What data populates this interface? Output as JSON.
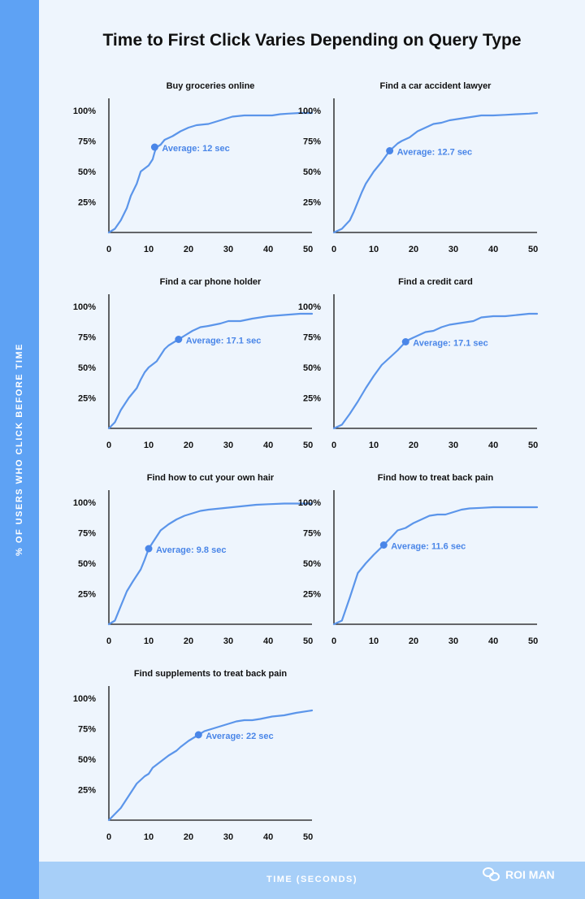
{
  "title": "Time to First Click Varies Depending on Query Type",
  "y_axis_title": "% OF USERS WHO CLICK BEFORE TIME",
  "x_axis_title": "TIME (SECONDS)",
  "watermark": {
    "text": "ROI MAN",
    "icon": "wechat-icon"
  },
  "colors": {
    "line": "#5b95ea",
    "label": "#4a86e8",
    "axis": "#111111",
    "left_band": "#5ea2f4",
    "bottom_band": "#a7cff8",
    "background": "#eef5fd"
  },
  "chart_data": [
    {
      "type": "line",
      "title": "Buy groceries online",
      "average_label": "Average: 12 sec",
      "average": {
        "x": 11.5,
        "y": 70
      },
      "x_ticks": [
        0,
        10,
        20,
        30,
        40,
        50
      ],
      "y_ticks": [
        25,
        50,
        75,
        100
      ],
      "y_tick_labels": [
        "25%",
        "50%",
        "75%",
        "100%"
      ],
      "xlim": [
        0,
        51
      ],
      "ylim": [
        0,
        100
      ],
      "x": [
        0,
        1.5,
        3,
        4.5,
        5.5,
        7,
        8,
        10,
        11,
        11.5,
        12,
        13,
        14,
        16,
        18,
        20,
        22,
        25,
        28,
        31,
        34,
        37,
        41,
        43,
        45,
        48,
        51
      ],
      "y": [
        0,
        3,
        10,
        20,
        30,
        40,
        50,
        55,
        60,
        66,
        70,
        72,
        76,
        79,
        83,
        86,
        88,
        89,
        92,
        95,
        96,
        96,
        96,
        97,
        97.5,
        98,
        98
      ]
    },
    {
      "type": "line",
      "title": "Find a car accident lawyer",
      "average_label": "Average: 12.7 sec",
      "average": {
        "x": 14,
        "y": 67
      },
      "x_ticks": [
        0,
        10,
        20,
        30,
        40,
        50
      ],
      "y_ticks": [
        25,
        50,
        75,
        100
      ],
      "y_tick_labels": [
        "25%",
        "50%",
        "75%",
        "100%"
      ],
      "xlim": [
        0,
        51
      ],
      "ylim": [
        0,
        100
      ],
      "x": [
        0,
        2,
        4,
        5,
        6,
        7,
        8,
        10,
        12,
        14,
        15,
        16,
        17,
        19,
        21,
        23,
        25,
        27,
        29,
        31,
        33,
        35,
        37,
        40,
        43,
        46,
        49,
        51
      ],
      "y": [
        0,
        3,
        10,
        17,
        25,
        33,
        40,
        50,
        58,
        67,
        70,
        73,
        75,
        78,
        83,
        86,
        89,
        90,
        92,
        93,
        94,
        95,
        96,
        96,
        96.5,
        97,
        97.5,
        98
      ]
    },
    {
      "type": "line",
      "title": "Find a car phone holder",
      "average_label": "Average: 17.1 sec",
      "average": {
        "x": 17.5,
        "y": 73
      },
      "x_ticks": [
        0,
        10,
        20,
        30,
        40,
        50
      ],
      "y_ticks": [
        25,
        50,
        75,
        100
      ],
      "y_tick_labels": [
        "25%",
        "50%",
        "75%",
        "100%"
      ],
      "xlim": [
        0,
        51
      ],
      "ylim": [
        0,
        100
      ],
      "x": [
        0,
        1.5,
        3,
        5,
        7,
        8,
        9,
        10,
        12,
        13,
        14,
        15,
        16,
        17.5,
        19,
        21,
        23,
        25,
        28,
        30,
        33,
        36,
        40,
        44,
        48,
        51
      ],
      "y": [
        0,
        5,
        15,
        25,
        33,
        40,
        46,
        50,
        55,
        60,
        65,
        68,
        70,
        73,
        76,
        80,
        83,
        84,
        86,
        88,
        88,
        90,
        92,
        93,
        94,
        94
      ]
    },
    {
      "type": "line",
      "title": "Find a credit card",
      "average_label": "Average: 17.1 sec",
      "average": {
        "x": 18,
        "y": 71
      },
      "x_ticks": [
        0,
        10,
        20,
        30,
        40,
        50
      ],
      "y_ticks": [
        25,
        50,
        75,
        100
      ],
      "y_tick_labels": [
        "25%",
        "50%",
        "75%",
        "100%"
      ],
      "xlim": [
        0,
        51
      ],
      "ylim": [
        0,
        100
      ],
      "x": [
        0,
        2,
        4,
        6,
        8,
        10,
        12,
        14,
        16,
        18,
        19,
        21,
        23,
        25,
        27,
        29,
        31,
        33,
        35,
        37,
        40,
        43,
        46,
        49,
        51
      ],
      "y": [
        0,
        3,
        12,
        22,
        33,
        43,
        52,
        58,
        64,
        71,
        73,
        76,
        79,
        80,
        83,
        85,
        86,
        87,
        88,
        91,
        92,
        92,
        93,
        94,
        94
      ]
    },
    {
      "type": "line",
      "title": "Find how to cut your own hair",
      "average_label": "Average: 9.8 sec",
      "average": {
        "x": 10,
        "y": 62
      },
      "x_ticks": [
        0,
        10,
        20,
        30,
        40,
        50
      ],
      "y_ticks": [
        25,
        50,
        75,
        100
      ],
      "y_tick_labels": [
        "25%",
        "50%",
        "75%",
        "100%"
      ],
      "xlim": [
        0,
        51
      ],
      "ylim": [
        0,
        100
      ],
      "x": [
        0,
        1.5,
        3,
        4.5,
        6,
        8,
        9,
        10,
        11,
        12,
        13,
        15,
        17,
        19,
        21,
        23,
        25,
        28,
        31,
        34,
        37,
        40,
        44,
        48,
        51
      ],
      "y": [
        0,
        3,
        15,
        27,
        35,
        45,
        53,
        62,
        67,
        72,
        77,
        82,
        86,
        89,
        91,
        93,
        94,
        95,
        96,
        97,
        98,
        98.5,
        99,
        99,
        99
      ]
    },
    {
      "type": "line",
      "title": "Find how to treat back pain",
      "average_label": "Average: 11.6 sec",
      "average": {
        "x": 12.5,
        "y": 65
      },
      "x_ticks": [
        0,
        10,
        20,
        30,
        40,
        50
      ],
      "y_ticks": [
        25,
        50,
        75,
        100
      ],
      "y_tick_labels": [
        "25%",
        "50%",
        "75%",
        "100%"
      ],
      "xlim": [
        0,
        51
      ],
      "ylim": [
        0,
        100
      ],
      "x": [
        0,
        2,
        4,
        6,
        8,
        10,
        12.5,
        14,
        16,
        18,
        20,
        22,
        24,
        26,
        28,
        30,
        32,
        34,
        37,
        40,
        44,
        48,
        51
      ],
      "y": [
        0,
        3,
        22,
        42,
        50,
        57,
        65,
        70,
        77,
        79,
        83,
        86,
        89,
        90,
        90,
        92,
        94,
        95,
        95.5,
        96,
        96,
        96,
        96
      ]
    },
    {
      "type": "line",
      "title": "Find supplements to treat back pain",
      "average_label": "Average: 22 sec",
      "average": {
        "x": 22.5,
        "y": 70
      },
      "x_ticks": [
        0,
        10,
        20,
        30,
        40,
        50
      ],
      "y_ticks": [
        25,
        50,
        75,
        100
      ],
      "y_tick_labels": [
        "25%",
        "50%",
        "75%",
        "100%"
      ],
      "xlim": [
        0,
        51
      ],
      "ylim": [
        0,
        100
      ],
      "x": [
        0,
        3,
        5,
        7,
        9,
        10,
        11,
        13,
        15,
        17,
        18,
        20,
        22.5,
        24,
        26,
        28,
        30,
        32,
        34,
        36,
        38,
        41,
        44,
        47,
        51
      ],
      "y": [
        0,
        10,
        20,
        30,
        36,
        38,
        43,
        48,
        53,
        57,
        60,
        65,
        70,
        73,
        75,
        77,
        79,
        81,
        82,
        82,
        83,
        85,
        86,
        88,
        90
      ]
    }
  ]
}
